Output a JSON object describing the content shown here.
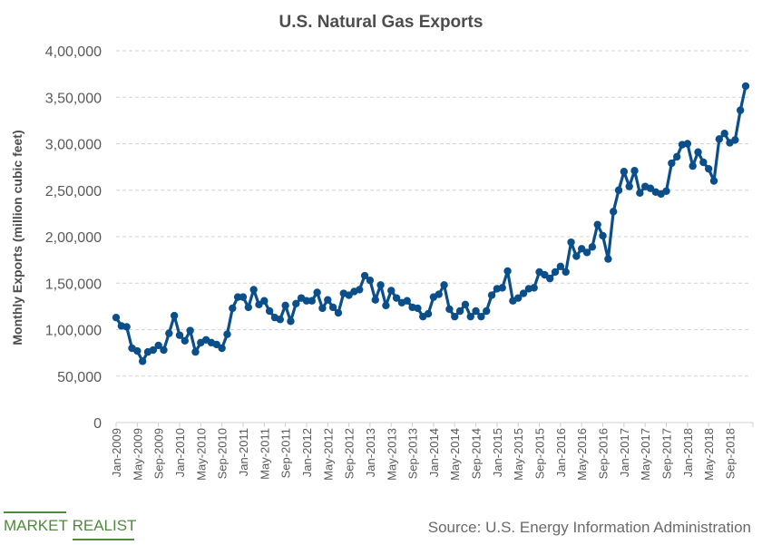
{
  "chart_data": {
    "type": "line",
    "title": "U.S. Natural Gas Exports",
    "xlabel": "",
    "ylabel": "Monthly Exports (million cubic feet)",
    "ylim": [
      0,
      400000
    ],
    "yticks": [
      0,
      50000,
      100000,
      150000,
      200000,
      250000,
      300000,
      350000,
      400000
    ],
    "ytick_labels": [
      "0",
      "50,000",
      "1,00,000",
      "1,50,000",
      "2,00,000",
      "2,50,000",
      "3,00,000",
      "3,50,000",
      "4,00,000"
    ],
    "grid": true,
    "legend": "none",
    "x_start": "Jan-2009",
    "x_end": "Dec-2018",
    "x_tick_labels": [
      "Jan-2009",
      "May-2009",
      "Sep-2009",
      "Jan-2010",
      "May-2010",
      "Sep-2010",
      "Jan-2011",
      "May-2011",
      "Sep-2011",
      "Jan-2012",
      "May-2012",
      "Sep-2012",
      "Jan-2013",
      "May-2013",
      "Sep-2013",
      "Jan-2014",
      "May-2014",
      "Sep-2014",
      "Jan-2015",
      "May-2015",
      "Sep-2015",
      "Jan-2016",
      "May-2016",
      "Sep-2016",
      "Jan-2017",
      "May-2017",
      "Sep-2017",
      "Jan-2018",
      "May-2018",
      "Sep-2018"
    ],
    "x_tick_every_months": 4,
    "series": [
      {
        "name": "U.S. Natural Gas Exports",
        "color": "#0b4f8a",
        "marker": "circle",
        "values": [
          113000,
          104000,
          103000,
          80000,
          77000,
          66000,
          76000,
          78000,
          83000,
          78000,
          96000,
          115000,
          94000,
          88000,
          99000,
          76000,
          86000,
          89000,
          86000,
          84000,
          80000,
          95000,
          123000,
          135000,
          135000,
          124000,
          143000,
          127000,
          131000,
          120000,
          113000,
          111000,
          126000,
          109000,
          128000,
          134000,
          131000,
          131000,
          140000,
          123000,
          132000,
          124000,
          118000,
          139000,
          137000,
          141000,
          143000,
          158000,
          153000,
          132000,
          148000,
          126000,
          142000,
          134000,
          129000,
          131000,
          124000,
          123000,
          114000,
          117000,
          135000,
          138000,
          148000,
          122000,
          114000,
          120000,
          127000,
          114000,
          120000,
          114000,
          120000,
          137000,
          144000,
          145000,
          163000,
          131000,
          134000,
          139000,
          144000,
          145000,
          162000,
          159000,
          155000,
          162000,
          168000,
          162000,
          194000,
          179000,
          187000,
          183000,
          189000,
          213000,
          201000,
          176000,
          227000,
          250000,
          270000,
          254000,
          271000,
          247000,
          254000,
          252000,
          248000,
          246000,
          249000,
          279000,
          286000,
          299000,
          300000,
          276000,
          291000,
          280000,
          273000,
          260000,
          305000,
          311000,
          301000,
          304000,
          336000,
          362000
        ]
      }
    ]
  },
  "footer": {
    "brand_word1": "MARKET",
    "brand_word2": "REALIST",
    "brand_color": "#4f8a3c",
    "source": "Source: U.S. Energy Information Administration"
  }
}
